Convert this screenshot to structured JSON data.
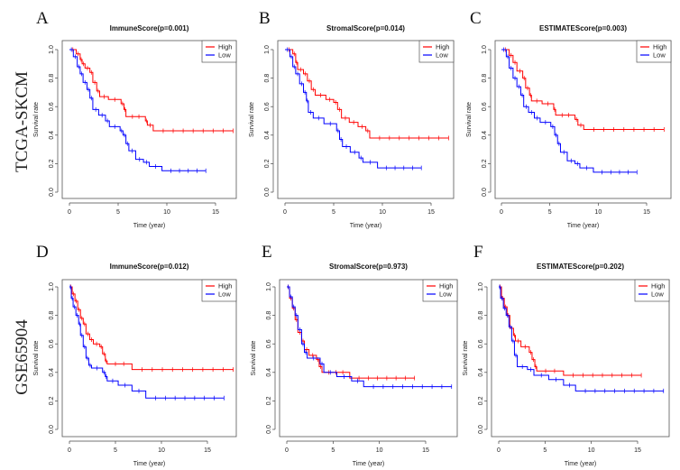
{
  "row_labels": [
    "TCGA-SKCM",
    "GSE65904"
  ],
  "chart_data": [
    {
      "type": "line",
      "panel": "A",
      "title": "ImmuneScore(p=0.001)",
      "xlabel": "Time (year)",
      "ylabel": "Survival rate",
      "xlim": [
        0,
        17
      ],
      "ylim": [
        0,
        1
      ],
      "xticks": [
        0,
        5,
        10,
        15
      ],
      "yticks": [
        "0.0",
        "0.2",
        "0.4",
        "0.6",
        "0.8",
        "1.0"
      ],
      "legend": {
        "position": "top-right",
        "entries": [
          {
            "name": "High",
            "color": "#ff0000"
          },
          {
            "name": "Low",
            "color": "#0000ff"
          }
        ]
      },
      "series": [
        {
          "name": "High",
          "color": "#ff0000",
          "steps": [
            [
              0,
              1
            ],
            [
              0.7,
              0.97
            ],
            [
              1.1,
              0.93
            ],
            [
              1.3,
              0.9
            ],
            [
              1.6,
              0.87
            ],
            [
              2.1,
              0.84
            ],
            [
              2.4,
              0.77
            ],
            [
              2.8,
              0.71
            ],
            [
              3.1,
              0.67
            ],
            [
              4.0,
              0.65
            ],
            [
              5.3,
              0.62
            ],
            [
              5.6,
              0.58
            ],
            [
              5.8,
              0.53
            ],
            [
              7.8,
              0.5
            ],
            [
              8.0,
              0.47
            ],
            [
              8.6,
              0.43
            ],
            [
              16.8,
              0.43
            ]
          ]
        },
        {
          "name": "Low",
          "color": "#0000ff",
          "steps": [
            [
              0,
              1
            ],
            [
              0.4,
              0.95
            ],
            [
              0.8,
              0.88
            ],
            [
              1.1,
              0.83
            ],
            [
              1.4,
              0.77
            ],
            [
              1.8,
              0.72
            ],
            [
              2.1,
              0.66
            ],
            [
              2.4,
              0.58
            ],
            [
              3.0,
              0.54
            ],
            [
              3.7,
              0.5
            ],
            [
              4.1,
              0.46
            ],
            [
              5.2,
              0.43
            ],
            [
              5.5,
              0.4
            ],
            [
              5.8,
              0.34
            ],
            [
              6.1,
              0.29
            ],
            [
              6.8,
              0.23
            ],
            [
              7.6,
              0.21
            ],
            [
              8.2,
              0.18
            ],
            [
              9.5,
              0.15
            ],
            [
              14,
              0.15
            ]
          ]
        }
      ]
    },
    {
      "type": "line",
      "panel": "B",
      "title": "StromalScore(p=0.014)",
      "xlabel": "Time (year)",
      "ylabel": "Survival rate",
      "xlim": [
        0,
        17
      ],
      "ylim": [
        0,
        1
      ],
      "xticks": [
        0,
        5,
        10,
        15
      ],
      "yticks": [
        "0.0",
        "0.2",
        "0.4",
        "0.6",
        "0.8",
        "1.0"
      ],
      "legend": {
        "position": "top-right",
        "entries": [
          {
            "name": "High",
            "color": "#ff0000"
          },
          {
            "name": "Low",
            "color": "#0000ff"
          }
        ]
      },
      "series": [
        {
          "name": "High",
          "color": "#ff0000",
          "steps": [
            [
              0,
              1
            ],
            [
              0.8,
              0.97
            ],
            [
              1.1,
              0.91
            ],
            [
              1.3,
              0.86
            ],
            [
              1.9,
              0.83
            ],
            [
              2.3,
              0.78
            ],
            [
              2.7,
              0.72
            ],
            [
              3.1,
              0.68
            ],
            [
              4.2,
              0.65
            ],
            [
              5.0,
              0.63
            ],
            [
              5.4,
              0.58
            ],
            [
              5.8,
              0.52
            ],
            [
              6.6,
              0.49
            ],
            [
              7.5,
              0.46
            ],
            [
              8.3,
              0.43
            ],
            [
              8.7,
              0.38
            ],
            [
              16.8,
              0.38
            ]
          ]
        },
        {
          "name": "Low",
          "color": "#0000ff",
          "steps": [
            [
              0,
              1
            ],
            [
              0.5,
              0.95
            ],
            [
              0.8,
              0.88
            ],
            [
              1.1,
              0.83
            ],
            [
              1.5,
              0.76
            ],
            [
              1.9,
              0.7
            ],
            [
              2.2,
              0.64
            ],
            [
              2.4,
              0.56
            ],
            [
              2.9,
              0.52
            ],
            [
              4.0,
              0.48
            ],
            [
              5.3,
              0.43
            ],
            [
              5.6,
              0.37
            ],
            [
              5.9,
              0.32
            ],
            [
              6.7,
              0.28
            ],
            [
              7.6,
              0.24
            ],
            [
              8.0,
              0.21
            ],
            [
              9.5,
              0.17
            ],
            [
              14,
              0.17
            ]
          ]
        }
      ]
    },
    {
      "type": "line",
      "panel": "C",
      "title": "ESTIMATEScore(p=0.003)",
      "xlabel": "Time (year)",
      "ylabel": "Survival rate",
      "xlim": [
        0,
        17
      ],
      "ylim": [
        0,
        1
      ],
      "xticks": [
        0,
        5,
        10,
        15
      ],
      "yticks": [
        "0.0",
        "0.2",
        "0.4",
        "0.6",
        "0.8",
        "1.0"
      ],
      "legend": {
        "position": "top-right",
        "entries": [
          {
            "name": "High",
            "color": "#ff0000"
          },
          {
            "name": "Low",
            "color": "#0000ff"
          }
        ]
      },
      "series": [
        {
          "name": "High",
          "color": "#ff0000",
          "steps": [
            [
              0,
              1
            ],
            [
              0.8,
              0.96
            ],
            [
              1.2,
              0.91
            ],
            [
              1.6,
              0.85
            ],
            [
              2.2,
              0.8
            ],
            [
              2.5,
              0.73
            ],
            [
              2.9,
              0.68
            ],
            [
              3.1,
              0.64
            ],
            [
              4.2,
              0.62
            ],
            [
              5.4,
              0.58
            ],
            [
              5.6,
              0.54
            ],
            [
              7.6,
              0.51
            ],
            [
              7.9,
              0.47
            ],
            [
              8.5,
              0.44
            ],
            [
              16.8,
              0.44
            ]
          ]
        },
        {
          "name": "Low",
          "color": "#0000ff",
          "steps": [
            [
              0,
              1
            ],
            [
              0.5,
              0.95
            ],
            [
              0.8,
              0.87
            ],
            [
              1.2,
              0.8
            ],
            [
              1.6,
              0.74
            ],
            [
              2.0,
              0.68
            ],
            [
              2.3,
              0.6
            ],
            [
              2.8,
              0.56
            ],
            [
              3.4,
              0.52
            ],
            [
              4.0,
              0.49
            ],
            [
              5.1,
              0.46
            ],
            [
              5.5,
              0.4
            ],
            [
              5.8,
              0.34
            ],
            [
              6.1,
              0.28
            ],
            [
              6.8,
              0.22
            ],
            [
              7.6,
              0.2
            ],
            [
              8.1,
              0.17
            ],
            [
              9.5,
              0.14
            ],
            [
              14,
              0.14
            ]
          ]
        }
      ]
    },
    {
      "type": "line",
      "panel": "D",
      "title": "ImmuneScore(p=0.012)",
      "xlabel": "Time (year)",
      "ylabel": "Survival rate",
      "xlim": [
        0,
        18
      ],
      "ylim": [
        0,
        1
      ],
      "xticks": [
        0,
        5,
        10,
        15
      ],
      "yticks": [
        "0.0",
        "0.2",
        "0.4",
        "0.6",
        "0.8",
        "1.0"
      ],
      "legend": {
        "position": "top-right",
        "entries": [
          {
            "name": "High",
            "color": "#ff0000"
          },
          {
            "name": "Low",
            "color": "#0000ff"
          }
        ]
      },
      "series": [
        {
          "name": "High",
          "color": "#ff0000",
          "steps": [
            [
              0,
              1
            ],
            [
              0.3,
              0.95
            ],
            [
              0.6,
              0.9
            ],
            [
              0.9,
              0.84
            ],
            [
              1.2,
              0.78
            ],
            [
              1.5,
              0.74
            ],
            [
              1.8,
              0.67
            ],
            [
              2.2,
              0.63
            ],
            [
              2.6,
              0.6
            ],
            [
              3.3,
              0.58
            ],
            [
              3.6,
              0.53
            ],
            [
              3.9,
              0.48
            ],
            [
              4.1,
              0.46
            ],
            [
              6.8,
              0.42
            ],
            [
              17.8,
              0.42
            ]
          ]
        },
        {
          "name": "Low",
          "color": "#0000ff",
          "steps": [
            [
              0,
              1
            ],
            [
              0.2,
              0.92
            ],
            [
              0.4,
              0.86
            ],
            [
              0.7,
              0.8
            ],
            [
              1.0,
              0.74
            ],
            [
              1.2,
              0.66
            ],
            [
              1.5,
              0.58
            ],
            [
              1.8,
              0.5
            ],
            [
              2.1,
              0.45
            ],
            [
              2.4,
              0.43
            ],
            [
              3.6,
              0.4
            ],
            [
              3.9,
              0.37
            ],
            [
              4.1,
              0.34
            ],
            [
              5.3,
              0.31
            ],
            [
              6.8,
              0.27
            ],
            [
              8.3,
              0.22
            ],
            [
              16.8,
              0.22
            ]
          ]
        }
      ]
    },
    {
      "type": "line",
      "panel": "E",
      "title": "StromalScore(p=0.973)",
      "xlabel": "Time (year)",
      "ylabel": "Survival rate",
      "xlim": [
        0,
        18
      ],
      "ylim": [
        0,
        1
      ],
      "xticks": [
        0,
        5,
        10,
        15
      ],
      "yticks": [
        "0.0",
        "0.2",
        "0.4",
        "0.6",
        "0.8",
        "1.0"
      ],
      "legend": {
        "position": "top-right",
        "entries": [
          {
            "name": "High",
            "color": "#ff0000"
          },
          {
            "name": "Low",
            "color": "#0000ff"
          }
        ]
      },
      "series": [
        {
          "name": "High",
          "color": "#ff0000",
          "steps": [
            [
              0,
              1
            ],
            [
              0.3,
              0.92
            ],
            [
              0.6,
              0.85
            ],
            [
              0.9,
              0.77
            ],
            [
              1.2,
              0.68
            ],
            [
              1.6,
              0.62
            ],
            [
              1.9,
              0.56
            ],
            [
              2.4,
              0.52
            ],
            [
              3.2,
              0.49
            ],
            [
              3.5,
              0.44
            ],
            [
              3.8,
              0.4
            ],
            [
              6.8,
              0.36
            ],
            [
              13.8,
              0.36
            ]
          ]
        },
        {
          "name": "Low",
          "color": "#0000ff",
          "steps": [
            [
              0,
              1
            ],
            [
              0.3,
              0.93
            ],
            [
              0.6,
              0.86
            ],
            [
              0.9,
              0.8
            ],
            [
              1.2,
              0.7
            ],
            [
              1.6,
              0.6
            ],
            [
              1.9,
              0.54
            ],
            [
              2.2,
              0.5
            ],
            [
              3.6,
              0.46
            ],
            [
              4.0,
              0.4
            ],
            [
              5.4,
              0.37
            ],
            [
              7.0,
              0.34
            ],
            [
              8.3,
              0.3
            ],
            [
              17.8,
              0.3
            ]
          ]
        }
      ]
    },
    {
      "type": "line",
      "panel": "F",
      "title": "ESTIMATEScore(p=0.202)",
      "xlabel": "Time (year)",
      "ylabel": "Survival rate",
      "xlim": [
        0,
        18
      ],
      "ylim": [
        0,
        1
      ],
      "xticks": [
        0,
        5,
        10,
        15
      ],
      "yticks": [
        "0.0",
        "0.2",
        "0.4",
        "0.6",
        "0.8",
        "1.0"
      ],
      "legend": {
        "position": "top-right",
        "entries": [
          {
            "name": "High",
            "color": "#ff0000"
          },
          {
            "name": "Low",
            "color": "#0000ff"
          }
        ]
      },
      "series": [
        {
          "name": "High",
          "color": "#ff0000",
          "steps": [
            [
              0,
              1
            ],
            [
              0.3,
              0.92
            ],
            [
              0.6,
              0.86
            ],
            [
              0.9,
              0.8
            ],
            [
              1.2,
              0.71
            ],
            [
              1.6,
              0.66
            ],
            [
              1.8,
              0.62
            ],
            [
              2.4,
              0.58
            ],
            [
              3.3,
              0.54
            ],
            [
              3.6,
              0.49
            ],
            [
              3.9,
              0.44
            ],
            [
              4.1,
              0.41
            ],
            [
              7.0,
              0.38
            ],
            [
              15.4,
              0.38
            ]
          ]
        },
        {
          "name": "Low",
          "color": "#0000ff",
          "steps": [
            [
              0,
              1
            ],
            [
              0.2,
              0.92
            ],
            [
              0.5,
              0.85
            ],
            [
              0.8,
              0.8
            ],
            [
              1.1,
              0.72
            ],
            [
              1.4,
              0.62
            ],
            [
              1.7,
              0.52
            ],
            [
              2.0,
              0.44
            ],
            [
              3.1,
              0.42
            ],
            [
              3.8,
              0.38
            ],
            [
              5.4,
              0.35
            ],
            [
              7.0,
              0.31
            ],
            [
              8.3,
              0.27
            ],
            [
              17.8,
              0.27
            ]
          ]
        }
      ]
    }
  ]
}
